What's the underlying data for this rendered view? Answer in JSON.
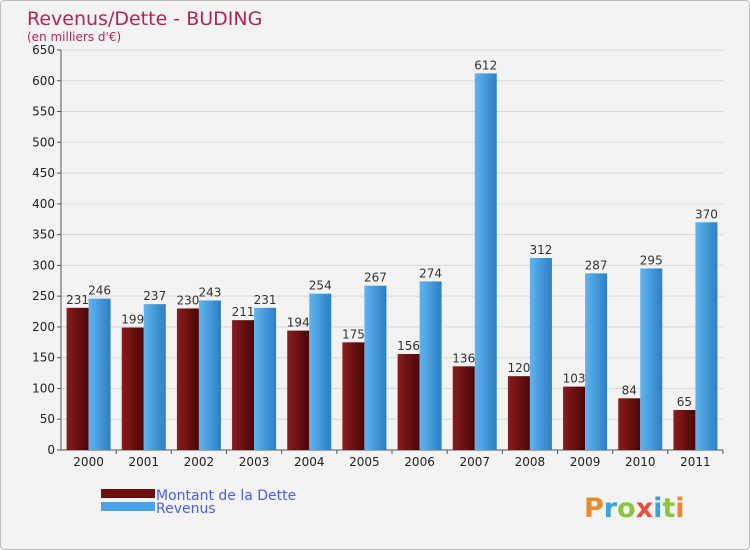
{
  "chart_data": {
    "type": "bar",
    "title": "Revenus/Dette - BUDING",
    "subtitle": "(en milliers d'€)",
    "categories": [
      "2000",
      "2001",
      "2002",
      "2003",
      "2004",
      "2005",
      "2006",
      "2007",
      "2008",
      "2009",
      "2010",
      "2011"
    ],
    "series": [
      {
        "name": "Montant de la Dette",
        "color": "#6b0f0f",
        "values": [
          231,
          199,
          230,
          211,
          194,
          175,
          156,
          136,
          120,
          103,
          84,
          65
        ]
      },
      {
        "name": "Revenus",
        "color": "#4aa3e6",
        "values": [
          246,
          237,
          243,
          231,
          254,
          267,
          274,
          612,
          312,
          287,
          295,
          370
        ]
      }
    ],
    "ylim": [
      0,
      650
    ],
    "yticks": [
      0,
      50,
      100,
      150,
      200,
      250,
      300,
      350,
      400,
      450,
      500,
      550,
      600,
      650
    ],
    "xlabel": "",
    "ylabel": "",
    "grid": true,
    "legend_position": "bottom-left"
  },
  "logo": {
    "letters": [
      {
        "ch": "P",
        "color": "#e98a2b"
      },
      {
        "ch": "r",
        "color": "#3aa6d8"
      },
      {
        "ch": "o",
        "color": "#8cc63f"
      },
      {
        "ch": "x",
        "color": "#e94e3c"
      },
      {
        "ch": "i",
        "color": "#3aa6d8"
      },
      {
        "ch": "t",
        "color": "#8cc63f"
      },
      {
        "ch": "i",
        "color": "#e98a2b"
      }
    ]
  }
}
